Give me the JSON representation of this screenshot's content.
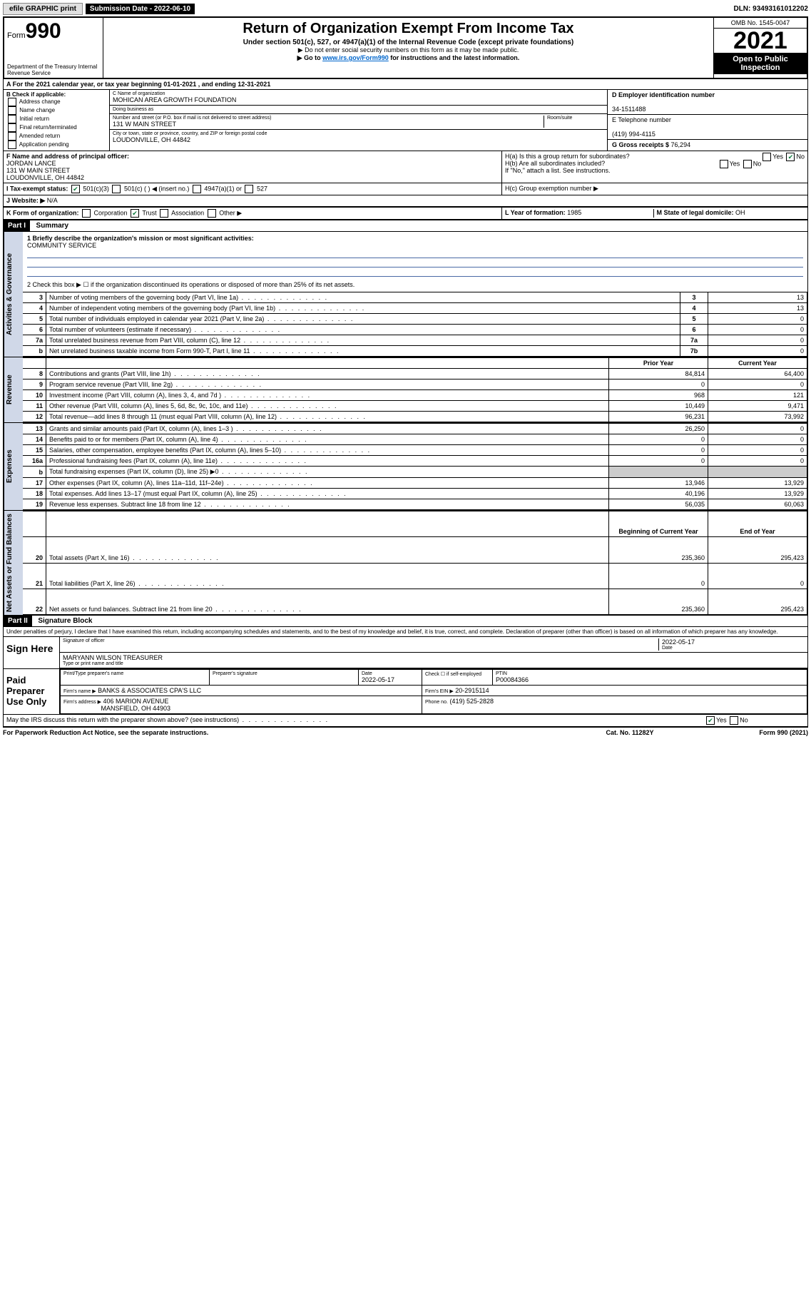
{
  "topbar": {
    "efile": "efile GRAPHIC print",
    "subdate_label": "Submission Date - 2022-06-10",
    "dln": "DLN: 93493161012202"
  },
  "header": {
    "form_label": "Form",
    "form_no": "990",
    "dept": "Department of the Treasury\nInternal Revenue Service",
    "title": "Return of Organization Exempt From Income Tax",
    "subtitle": "Under section 501(c), 527, or 4947(a)(1) of the Internal Revenue Code (except private foundations)",
    "note1": "▶ Do not enter social security numbers on this form as it may be made public.",
    "note2_pre": "▶ Go to ",
    "note2_link": "www.irs.gov/Form990",
    "note2_post": " for instructions and the latest information.",
    "omb": "OMB No. 1545-0047",
    "year": "2021",
    "inspect": "Open to Public Inspection"
  },
  "row_a": "A For the 2021 calendar year, or tax year beginning 01-01-2021   , and ending 12-31-2021",
  "col_b": {
    "label": "B Check if applicable:",
    "items": [
      "Address change",
      "Name change",
      "Initial return",
      "Final return/terminated",
      "Amended return",
      "Application pending"
    ]
  },
  "col_c": {
    "name_lbl": "C Name of organization",
    "name": "MOHICAN AREA GROWTH FOUNDATION",
    "dba_lbl": "Doing business as",
    "dba": "",
    "addr_lbl": "Number and street (or P.O. box if mail is not delivered to street address)",
    "room_lbl": "Room/suite",
    "addr": "131 W MAIN STREET",
    "city_lbl": "City or town, state or province, country, and ZIP or foreign postal code",
    "city": "LOUDONVILLE, OH  44842"
  },
  "col_d": {
    "ein_lbl": "D Employer identification number",
    "ein": "34-1511488",
    "tel_lbl": "E Telephone number",
    "tel": "(419) 994-4115",
    "gross_lbl": "G Gross receipts $ ",
    "gross": "76,294"
  },
  "row_f": {
    "f_lbl": "F Name and address of principal officer:",
    "f_name": "JORDAN LANCE",
    "f_addr1": "131 W MAIN STREET",
    "f_addr2": "LOUDONVILLE, OH  44842",
    "ha": "H(a)  Is this a group return for subordinates?",
    "hb": "H(b)  Are all subordinates included?",
    "hnote": "If \"No,\" attach a list. See instructions.",
    "hc": "H(c)  Group exemption number ▶"
  },
  "row_i": {
    "lbl": "I   Tax-exempt status:",
    "opt1": "501(c)(3)",
    "opt2": "501(c) (   ) ◀ (insert no.)",
    "opt3": "4947(a)(1) or",
    "opt4": "527"
  },
  "row_j": {
    "lbl": "J   Website: ▶",
    "val": "N/A"
  },
  "row_k": {
    "lbl": "K Form of organization:",
    "opts": [
      "Corporation",
      "Trust",
      "Association",
      "Other ▶"
    ],
    "l_lbl": "L Year of formation: ",
    "l_val": "1985",
    "m_lbl": "M State of legal domicile: ",
    "m_val": "OH"
  },
  "part1": {
    "hdr": "Part I",
    "title": "Summary",
    "line1_lbl": "1  Briefly describe the organization's mission or most significant activities:",
    "line1_val": "COMMUNITY SERVICE",
    "line2": "2   Check this box ▶ ☐  if the organization discontinued its operations or disposed of more than 25% of its net assets."
  },
  "vlabels": {
    "gov": "Activities & Governance",
    "rev": "Revenue",
    "exp": "Expenses",
    "net": "Net Assets or Fund Balances"
  },
  "gov_lines": [
    {
      "n": "3",
      "desc": "Number of voting members of the governing body (Part VI, line 1a)",
      "col": "3",
      "val": "13"
    },
    {
      "n": "4",
      "desc": "Number of independent voting members of the governing body (Part VI, line 1b)",
      "col": "4",
      "val": "13"
    },
    {
      "n": "5",
      "desc": "Total number of individuals employed in calendar year 2021 (Part V, line 2a)",
      "col": "5",
      "val": "0"
    },
    {
      "n": "6",
      "desc": "Total number of volunteers (estimate if necessary)",
      "col": "6",
      "val": "0"
    },
    {
      "n": "7a",
      "desc": "Total unrelated business revenue from Part VIII, column (C), line 12",
      "col": "7a",
      "val": "0"
    },
    {
      "n": "b",
      "desc": "Net unrelated business taxable income from Form 990-T, Part I, line 11",
      "col": "7b",
      "val": "0"
    }
  ],
  "col_hdrs": {
    "prior": "Prior Year",
    "curr": "Current Year"
  },
  "rev_lines": [
    {
      "n": "8",
      "desc": "Contributions and grants (Part VIII, line 1h)",
      "prior": "84,814",
      "curr": "64,400"
    },
    {
      "n": "9",
      "desc": "Program service revenue (Part VIII, line 2g)",
      "prior": "0",
      "curr": "0"
    },
    {
      "n": "10",
      "desc": "Investment income (Part VIII, column (A), lines 3, 4, and 7d )",
      "prior": "968",
      "curr": "121"
    },
    {
      "n": "11",
      "desc": "Other revenue (Part VIII, column (A), lines 5, 6d, 8c, 9c, 10c, and 11e)",
      "prior": "10,449",
      "curr": "9,471"
    },
    {
      "n": "12",
      "desc": "Total revenue—add lines 8 through 11 (must equal Part VIII, column (A), line 12)",
      "prior": "96,231",
      "curr": "73,992"
    }
  ],
  "exp_lines": [
    {
      "n": "13",
      "desc": "Grants and similar amounts paid (Part IX, column (A), lines 1–3 )",
      "prior": "26,250",
      "curr": "0"
    },
    {
      "n": "14",
      "desc": "Benefits paid to or for members (Part IX, column (A), line 4)",
      "prior": "0",
      "curr": "0"
    },
    {
      "n": "15",
      "desc": "Salaries, other compensation, employee benefits (Part IX, column (A), lines 5–10)",
      "prior": "0",
      "curr": "0"
    },
    {
      "n": "16a",
      "desc": "Professional fundraising fees (Part IX, column (A), line 11e)",
      "prior": "0",
      "curr": "0"
    },
    {
      "n": "b",
      "desc": "Total fundraising expenses (Part IX, column (D), line 25) ▶0",
      "prior": "",
      "curr": "",
      "shade": true
    },
    {
      "n": "17",
      "desc": "Other expenses (Part IX, column (A), lines 11a–11d, 11f–24e)",
      "prior": "13,946",
      "curr": "13,929"
    },
    {
      "n": "18",
      "desc": "Total expenses. Add lines 13–17 (must equal Part IX, column (A), line 25)",
      "prior": "40,196",
      "curr": "13,929"
    },
    {
      "n": "19",
      "desc": "Revenue less expenses. Subtract line 18 from line 12",
      "prior": "56,035",
      "curr": "60,063"
    }
  ],
  "net_hdrs": {
    "beg": "Beginning of Current Year",
    "end": "End of Year"
  },
  "net_lines": [
    {
      "n": "20",
      "desc": "Total assets (Part X, line 16)",
      "prior": "235,360",
      "curr": "295,423"
    },
    {
      "n": "21",
      "desc": "Total liabilities (Part X, line 26)",
      "prior": "0",
      "curr": "0"
    },
    {
      "n": "22",
      "desc": "Net assets or fund balances. Subtract line 21 from line 20",
      "prior": "235,360",
      "curr": "295,423"
    }
  ],
  "part2": {
    "hdr": "Part II",
    "title": "Signature Block",
    "penalty": "Under penalties of perjury, I declare that I have examined this return, including accompanying schedules and statements, and to the best of my knowledge and belief, it is true, correct, and complete. Declaration of preparer (other than officer) is based on all information of which preparer has any knowledge."
  },
  "sign": {
    "here": "Sign Here",
    "sig_lbl": "Signature of officer",
    "date": "2022-05-17",
    "date_lbl": "Date",
    "name": "MARYANN WILSON TREASURER",
    "name_lbl": "Type or print name and title"
  },
  "prep": {
    "title": "Paid Preparer Use Only",
    "h1": "Print/Type preparer's name",
    "h2": "Preparer's signature",
    "h3": "Date",
    "h3v": "2022-05-17",
    "h4": "Check ☐ if self-employed",
    "h5": "PTIN",
    "h5v": "P00084366",
    "firm_lbl": "Firm's name    ▶",
    "firm": "BANKS & ASSOCIATES CPA'S LLC",
    "ein_lbl": "Firm's EIN ▶",
    "ein": "20-2915114",
    "addr_lbl": "Firm's address ▶",
    "addr1": "406 MARION AVENUE",
    "addr2": "MANSFIELD, OH  44903",
    "phone_lbl": "Phone no.",
    "phone": "(419) 525-2828"
  },
  "discuss": "May the IRS discuss this return with the preparer shown above? (see instructions)",
  "footer": {
    "l": "For Paperwork Reduction Act Notice, see the separate instructions.",
    "m": "Cat. No. 11282Y",
    "r": "Form 990 (2021)"
  },
  "yes": "Yes",
  "no": "No"
}
